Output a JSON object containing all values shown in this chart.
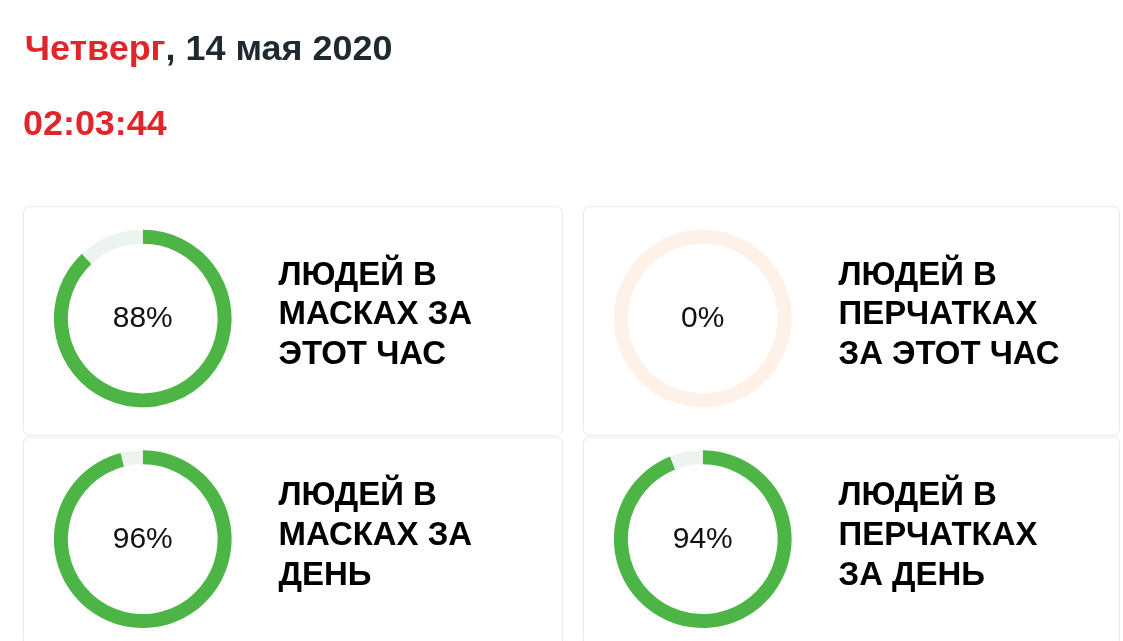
{
  "chart_data": [
    {
      "type": "other",
      "title": "Четверг, 14 мая 2020",
      "subtitle": "02:03:44"
    },
    {
      "type": "donut",
      "title": "ЛЮДЕЙ В МАСКАХ ЗА ЭТОТ ЧАС",
      "categories": [
        null,
        null
      ],
      "values": [
        88,
        12
      ],
      "colors": [
        "#4db546",
        "#edf4ef"
      ],
      "value_labels": [
        "88%",
        null
      ]
    },
    {
      "type": "donut",
      "title": "ЛЮДЕЙ В ПЕРЧАТКАХ ЗА ЭТОТ ЧАС",
      "categories": [
        null,
        null
      ],
      "values": [
        0,
        100
      ],
      "colors": [
        "#4db546",
        "#fdf1e8"
      ],
      "value_labels": [
        "0%",
        null
      ]
    },
    {
      "type": "donut",
      "title": "ЛЮДЕЙ В МАСКАХ ЗА ДЕНЬ",
      "categories": [
        null,
        null
      ],
      "values": [
        96,
        4
      ],
      "colors": [
        "#4db546",
        "#edf4ef"
      ],
      "value_labels": [
        "96%",
        null
      ]
    },
    {
      "type": "donut",
      "title": "ЛЮДЕЙ В ПЕРЧАТКАХ ЗА ДЕНЬ",
      "categories": [
        null,
        null
      ],
      "values": [
        94,
        6
      ],
      "colors": [
        "#4db546",
        "#edf4ef"
      ],
      "value_labels": [
        "94%",
        null
      ]
    }
  ]
}
